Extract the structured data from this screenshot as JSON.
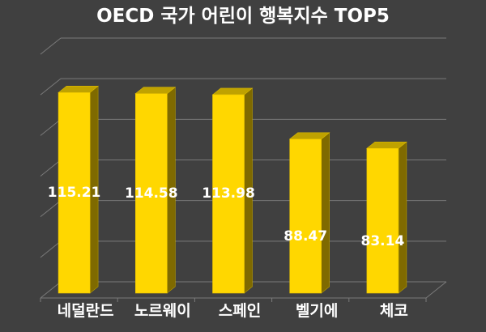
{
  "chart_data": {
    "type": "bar",
    "title": "OECD 국가 어린이 행복지수 TOP5",
    "categories": [
      "네덜란드",
      "노르웨이",
      "스페인",
      "벨기에",
      "체코"
    ],
    "values": [
      115.21,
      114.58,
      113.98,
      88.47,
      83.14
    ],
    "value_labels": [
      "115.21",
      "114.58",
      "113.98",
      "88.47",
      "83.14"
    ],
    "xlabel": "",
    "ylabel": "",
    "ylim": [
      0,
      140
    ],
    "grid": true,
    "gridline_count": 7,
    "legend": "none",
    "style": "3d-column",
    "colors": {
      "background": "#404040",
      "bar_front": "#FFD700",
      "bar_side": "#7F6A00",
      "bar_top": "#BFA200",
      "gridline": "#7A7A7A",
      "text": "#FFFFFF"
    }
  }
}
